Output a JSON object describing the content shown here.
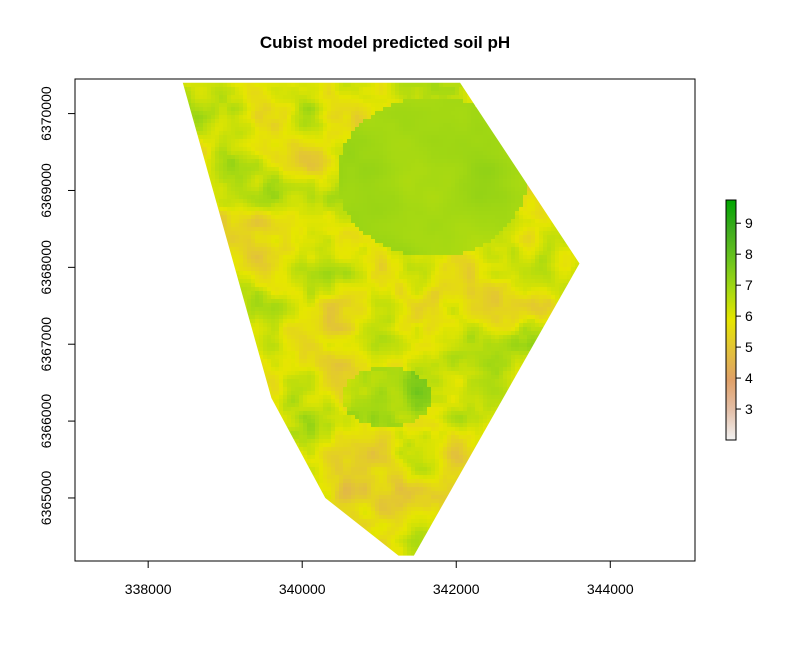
{
  "chart_data": {
    "type": "heatmap",
    "title": "Cubist model predicted soil pH",
    "xlabel": "",
    "ylabel": "",
    "xlim": [
      337050,
      345100
    ],
    "ylim": [
      6364180,
      6370450
    ],
    "x_ticks": [
      338000,
      340000,
      342000,
      344000
    ],
    "x_tick_labels": [
      "338000",
      "340000",
      "342000",
      "344000"
    ],
    "y_ticks": [
      6365000,
      6366000,
      6367000,
      6368000,
      6369000,
      6370000
    ],
    "y_tick_labels": [
      "6365000",
      "6366000",
      "6367000",
      "6368000",
      "6369000",
      "6370000"
    ],
    "grid": false,
    "legend": {
      "placement": "right",
      "range": [
        2.0,
        9.75
      ],
      "ticks": [
        3,
        4,
        5,
        6,
        7,
        8,
        9
      ],
      "tick_labels": [
        "3",
        "4",
        "5",
        "6",
        "7",
        "8",
        "9"
      ],
      "palette": [
        "#f2f2f2",
        "#e3bfa8",
        "#e0a068",
        "#e2c23a",
        "#e6e600",
        "#a6d912",
        "#6bc41d",
        "#3fac1f",
        "#00a600"
      ]
    },
    "study_area_outline": [
      [
        338450,
        6370400
      ],
      [
        340800,
        6370400
      ],
      [
        342050,
        6370400
      ],
      [
        343600,
        6368050
      ],
      [
        341450,
        6364250
      ],
      [
        341250,
        6364250
      ],
      [
        340300,
        6365000
      ],
      [
        339600,
        6366300
      ],
      [
        338450,
        6370400
      ]
    ]
  }
}
